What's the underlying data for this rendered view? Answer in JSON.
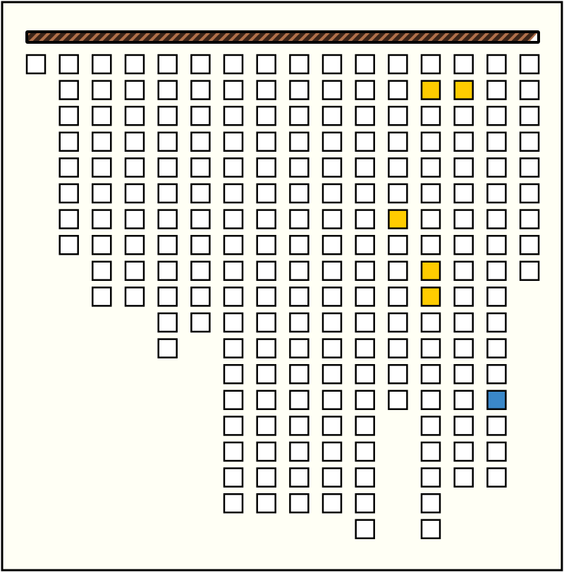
{
  "board": {
    "empty_color": "#ffffff",
    "highlight_colors": {
      "yellow": "#ffcc00",
      "blue": "#3a87c8"
    },
    "columns": [
      {
        "cells": 1
      },
      {
        "cells": 8
      },
      {
        "cells": 10
      },
      {
        "cells": 10
      },
      {
        "cells": 12
      },
      {
        "cells": 11
      },
      {
        "cells": 18
      },
      {
        "cells": 18
      },
      {
        "cells": 18
      },
      {
        "cells": 18
      },
      {
        "cells": 19
      },
      {
        "cells": 14,
        "yellow": [
          6
        ]
      },
      {
        "cells": 19,
        "yellow": [
          1,
          8,
          9
        ]
      },
      {
        "cells": 17,
        "yellow": [
          1
        ]
      },
      {
        "cells": 17,
        "blue": [
          13
        ]
      },
      {
        "cells": 9
      }
    ]
  }
}
